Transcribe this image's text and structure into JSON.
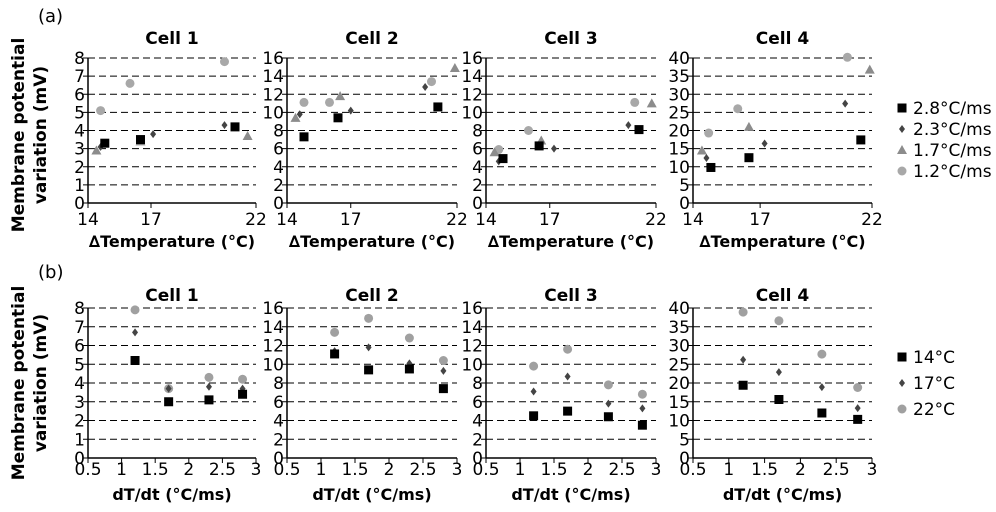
{
  "figure": {
    "panel_labels": [
      "(a)",
      "(b)"
    ],
    "ylabel_line1": "Membrane potential",
    "ylabel_line2": "variation (mV)",
    "colors": {
      "14": "#000000",
      "17": "#444444",
      "22": "#a0a0a0"
    }
  },
  "chart_data": [
    {
      "type": "scatter",
      "panel": "(a)",
      "title": "Cell 1",
      "xlabel_prefix": "∆",
      "xlabel": "Temperature (°C)",
      "xlim": [
        14,
        22
      ],
      "xticks": [
        "14",
        "17",
        "22"
      ],
      "ylim": [
        0,
        8
      ],
      "yticks": [
        "0",
        "1",
        "2",
        "3",
        "4",
        "5",
        "6",
        "7",
        "8"
      ],
      "grid": true,
      "series": [
        {
          "name": "2.8°C/ms",
          "marker": "square",
          "values": [
            [
              14.8,
              3.3
            ],
            [
              16.5,
              3.5
            ],
            [
              21,
              4.2
            ]
          ]
        },
        {
          "name": "2.3°C/ms",
          "marker": "diamond",
          "values": [
            [
              14.6,
              3.1
            ],
            [
              17.1,
              3.8
            ],
            [
              20.5,
              4.3
            ]
          ]
        },
        {
          "name": "1.7°C/ms",
          "marker": "triangle",
          "values": [
            [
              14.4,
              2.9
            ],
            [
              16.5,
              3.4
            ],
            [
              21.6,
              3.7
            ]
          ]
        },
        {
          "name": "1.2°C/ms",
          "marker": "circle",
          "values": [
            [
              14.6,
              5.1
            ],
            [
              16.0,
              6.6
            ],
            [
              20.5,
              7.8
            ]
          ]
        }
      ]
    },
    {
      "type": "scatter",
      "panel": "(a)",
      "title": "Cell 2",
      "xlabel_prefix": "∆",
      "xlabel": "Temperature (°C)",
      "xlim": [
        14,
        22
      ],
      "xticks": [
        "14",
        "17",
        "22"
      ],
      "ylim": [
        0,
        16
      ],
      "yticks": [
        "0",
        "2",
        "4",
        "6",
        "8",
        "10",
        "12",
        "14",
        "16"
      ],
      "grid": true,
      "series": [
        {
          "name": "2.8°C/ms",
          "marker": "square",
          "values": [
            [
              14.8,
              7.3
            ],
            [
              16.4,
              9.4
            ],
            [
              21.1,
              10.6
            ]
          ]
        },
        {
          "name": "2.3°C/ms",
          "marker": "diamond",
          "values": [
            [
              14.6,
              9.8
            ],
            [
              17.0,
              10.2
            ],
            [
              20.5,
              12.8
            ]
          ]
        },
        {
          "name": "1.7°C/ms",
          "marker": "triangle",
          "values": [
            [
              14.4,
              9.4
            ],
            [
              16.5,
              11.8
            ],
            [
              21.9,
              14.9
            ]
          ]
        },
        {
          "name": "1.2°C/ms",
          "marker": "circle",
          "values": [
            [
              14.8,
              11.1
            ],
            [
              16.0,
              11.1
            ],
            [
              20.8,
              13.4
            ]
          ]
        }
      ]
    },
    {
      "type": "scatter",
      "panel": "(a)",
      "title": "Cell 3",
      "xlabel_prefix": "∆",
      "xlabel": "Temperature (°C)",
      "xlim": [
        14,
        22
      ],
      "xticks": [
        "14",
        "17",
        "22"
      ],
      "ylim": [
        0,
        16
      ],
      "yticks": [
        "0",
        "2",
        "4",
        "6",
        "8",
        "10",
        "12",
        "14",
        "16"
      ],
      "grid": true,
      "series": [
        {
          "name": "2.8°C/ms",
          "marker": "square",
          "values": [
            [
              14.8,
              4.9
            ],
            [
              16.5,
              6.3
            ],
            [
              21.2,
              8.1
            ]
          ]
        },
        {
          "name": "2.3°C/ms",
          "marker": "diamond",
          "values": [
            [
              14.6,
              4.6
            ],
            [
              17.2,
              6.0
            ],
            [
              20.7,
              8.6
            ]
          ]
        },
        {
          "name": "1.7°C/ms",
          "marker": "triangle",
          "values": [
            [
              14.4,
              5.6
            ],
            [
              16.6,
              6.9
            ],
            [
              21.8,
              11.0
            ]
          ]
        },
        {
          "name": "1.2°C/ms",
          "marker": "circle",
          "values": [
            [
              14.6,
              5.9
            ],
            [
              16.0,
              8.0
            ],
            [
              21.0,
              11.1
            ]
          ]
        }
      ]
    },
    {
      "type": "scatter",
      "panel": "(a)",
      "title": "Cell 4",
      "xlabel_prefix": "∆",
      "xlabel": "Temperature (°C)",
      "xlim": [
        14,
        22
      ],
      "xticks": [
        "14",
        "17",
        "22"
      ],
      "ylim": [
        0,
        40
      ],
      "yticks": [
        "0",
        "5",
        "10",
        "15",
        "20",
        "25",
        "30",
        "35",
        "40"
      ],
      "grid": true,
      "series": [
        {
          "name": "2.8°C/ms",
          "marker": "square",
          "values": [
            [
              14.8,
              9.8
            ],
            [
              16.5,
              12.5
            ],
            [
              21.5,
              17.4
            ]
          ]
        },
        {
          "name": "2.3°C/ms",
          "marker": "diamond",
          "values": [
            [
              14.6,
              12.4
            ],
            [
              17.2,
              16.4
            ],
            [
              20.8,
              27.4
            ]
          ]
        },
        {
          "name": "1.7°C/ms",
          "marker": "triangle",
          "values": [
            [
              14.4,
              14.5
            ],
            [
              16.5,
              21.0
            ],
            [
              21.9,
              36.8
            ]
          ]
        },
        {
          "name": "1.2°C/ms",
          "marker": "circle",
          "values": [
            [
              14.7,
              19.3
            ],
            [
              16.0,
              26.0
            ],
            [
              20.9,
              40.2
            ]
          ]
        }
      ]
    },
    {
      "type": "scatter",
      "panel": "(b)",
      "title": "Cell 1",
      "xlabel": "dT/dt (°C/ms)",
      "xlim": [
        0.5,
        3
      ],
      "xticks": [
        "0.5",
        "1",
        "1.5",
        "2",
        "2.5",
        "3"
      ],
      "ylim": [
        0,
        8
      ],
      "yticks": [
        "0",
        "1",
        "2",
        "3",
        "4",
        "5",
        "6",
        "7",
        "8"
      ],
      "grid": true,
      "series": [
        {
          "name": "14°C",
          "marker": "square",
          "values": [
            [
              1.2,
              5.2
            ],
            [
              1.7,
              3.0
            ],
            [
              2.3,
              3.1
            ],
            [
              2.8,
              3.4
            ]
          ]
        },
        {
          "name": "17°C",
          "marker": "diamond",
          "values": [
            [
              1.2,
              6.7
            ],
            [
              1.7,
              3.7
            ],
            [
              2.3,
              3.8
            ],
            [
              2.8,
              3.7
            ]
          ]
        },
        {
          "name": "22°C",
          "marker": "circle",
          "values": [
            [
              1.2,
              7.9
            ],
            [
              1.7,
              3.7
            ],
            [
              2.3,
              4.3
            ],
            [
              2.8,
              4.2
            ]
          ]
        }
      ]
    },
    {
      "type": "scatter",
      "panel": "(b)",
      "title": "Cell 2",
      "xlabel": "dT/dt (°C/ms)",
      "xlim": [
        0.5,
        3
      ],
      "xticks": [
        "0.5",
        "1",
        "1.5",
        "2",
        "2.5",
        "3"
      ],
      "ylim": [
        0,
        16
      ],
      "yticks": [
        "0",
        "2",
        "4",
        "6",
        "8",
        "10",
        "12",
        "14",
        "16"
      ],
      "grid": true,
      "series": [
        {
          "name": "14°C",
          "marker": "square",
          "values": [
            [
              1.2,
              11.1
            ],
            [
              1.7,
              9.4
            ],
            [
              2.3,
              9.5
            ],
            [
              2.8,
              7.4
            ]
          ]
        },
        {
          "name": "17°C",
          "marker": "diamond",
          "values": [
            [
              1.2,
              11.4
            ],
            [
              1.7,
              11.8
            ],
            [
              2.3,
              10.1
            ],
            [
              2.8,
              9.3
            ]
          ]
        },
        {
          "name": "22°C",
          "marker": "circle",
          "values": [
            [
              1.2,
              13.4
            ],
            [
              1.7,
              14.9
            ],
            [
              2.3,
              12.8
            ],
            [
              2.8,
              10.4
            ]
          ]
        }
      ]
    },
    {
      "type": "scatter",
      "panel": "(b)",
      "title": "Cell 3",
      "xlabel": "dT/dt (°C/ms)",
      "xlim": [
        0.5,
        3
      ],
      "xticks": [
        "0.5",
        "1",
        "1.5",
        "2",
        "2.5",
        "3"
      ],
      "ylim": [
        0,
        16
      ],
      "yticks": [
        "0",
        "2",
        "4",
        "6",
        "8",
        "10",
        "12",
        "14",
        "16"
      ],
      "grid": true,
      "series": [
        {
          "name": "14°C",
          "marker": "square",
          "values": [
            [
              1.2,
              4.5
            ],
            [
              1.7,
              5.0
            ],
            [
              2.3,
              4.4
            ],
            [
              2.8,
              3.5
            ]
          ]
        },
        {
          "name": "17°C",
          "marker": "diamond",
          "values": [
            [
              1.2,
              7.1
            ],
            [
              1.7,
              8.7
            ],
            [
              2.3,
              5.8
            ],
            [
              2.8,
              5.3
            ]
          ]
        },
        {
          "name": "22°C",
          "marker": "circle",
          "values": [
            [
              1.2,
              9.8
            ],
            [
              1.7,
              11.6
            ],
            [
              2.3,
              7.8
            ],
            [
              2.8,
              6.8
            ]
          ]
        }
      ]
    },
    {
      "type": "scatter",
      "panel": "(b)",
      "title": "Cell 4",
      "xlabel": "dT/dt (°C/ms)",
      "xlim": [
        0.5,
        3
      ],
      "xticks": [
        "0.5",
        "1",
        "1.5",
        "2",
        "2.5",
        "3"
      ],
      "ylim": [
        0,
        40
      ],
      "yticks": [
        "0",
        "5",
        "10",
        "15",
        "20",
        "25",
        "30",
        "35",
        "40"
      ],
      "grid": true,
      "series": [
        {
          "name": "14°C",
          "marker": "square",
          "values": [
            [
              1.2,
              19.4
            ],
            [
              1.7,
              15.6
            ],
            [
              2.3,
              12.0
            ],
            [
              2.8,
              10.3
            ]
          ]
        },
        {
          "name": "17°C",
          "marker": "diamond",
          "values": [
            [
              1.2,
              26.2
            ],
            [
              1.7,
              22.9
            ],
            [
              2.3,
              18.9
            ],
            [
              2.8,
              13.3
            ]
          ]
        },
        {
          "name": "22°C",
          "marker": "circle",
          "values": [
            [
              1.2,
              38.9
            ],
            [
              1.7,
              36.6
            ],
            [
              2.3,
              27.7
            ],
            [
              2.8,
              18.8
            ]
          ]
        }
      ]
    }
  ],
  "legends": [
    {
      "panel": "(a)",
      "items": [
        {
          "label": "2.8°C/ms",
          "marker": "square",
          "color": "#000000"
        },
        {
          "label": "2.3°C/ms",
          "marker": "diamond",
          "color": "#444444"
        },
        {
          "label": "1.7°C/ms",
          "marker": "triangle",
          "color": "#8c8c8c"
        },
        {
          "label": "1.2°C/ms",
          "marker": "circle",
          "color": "#a8a8a8"
        }
      ]
    },
    {
      "panel": "(b)",
      "items": [
        {
          "label": "14°C",
          "marker": "square",
          "color": "#000000"
        },
        {
          "label": "17°C",
          "marker": "diamond",
          "color": "#444444"
        },
        {
          "label": "22°C",
          "marker": "circle",
          "color": "#a0a0a0"
        }
      ]
    }
  ],
  "marker_colors": {
    "square": "#000000",
    "diamond": "#444444",
    "triangle": "#8c8c8c",
    "circle": "#a8a8a8"
  }
}
